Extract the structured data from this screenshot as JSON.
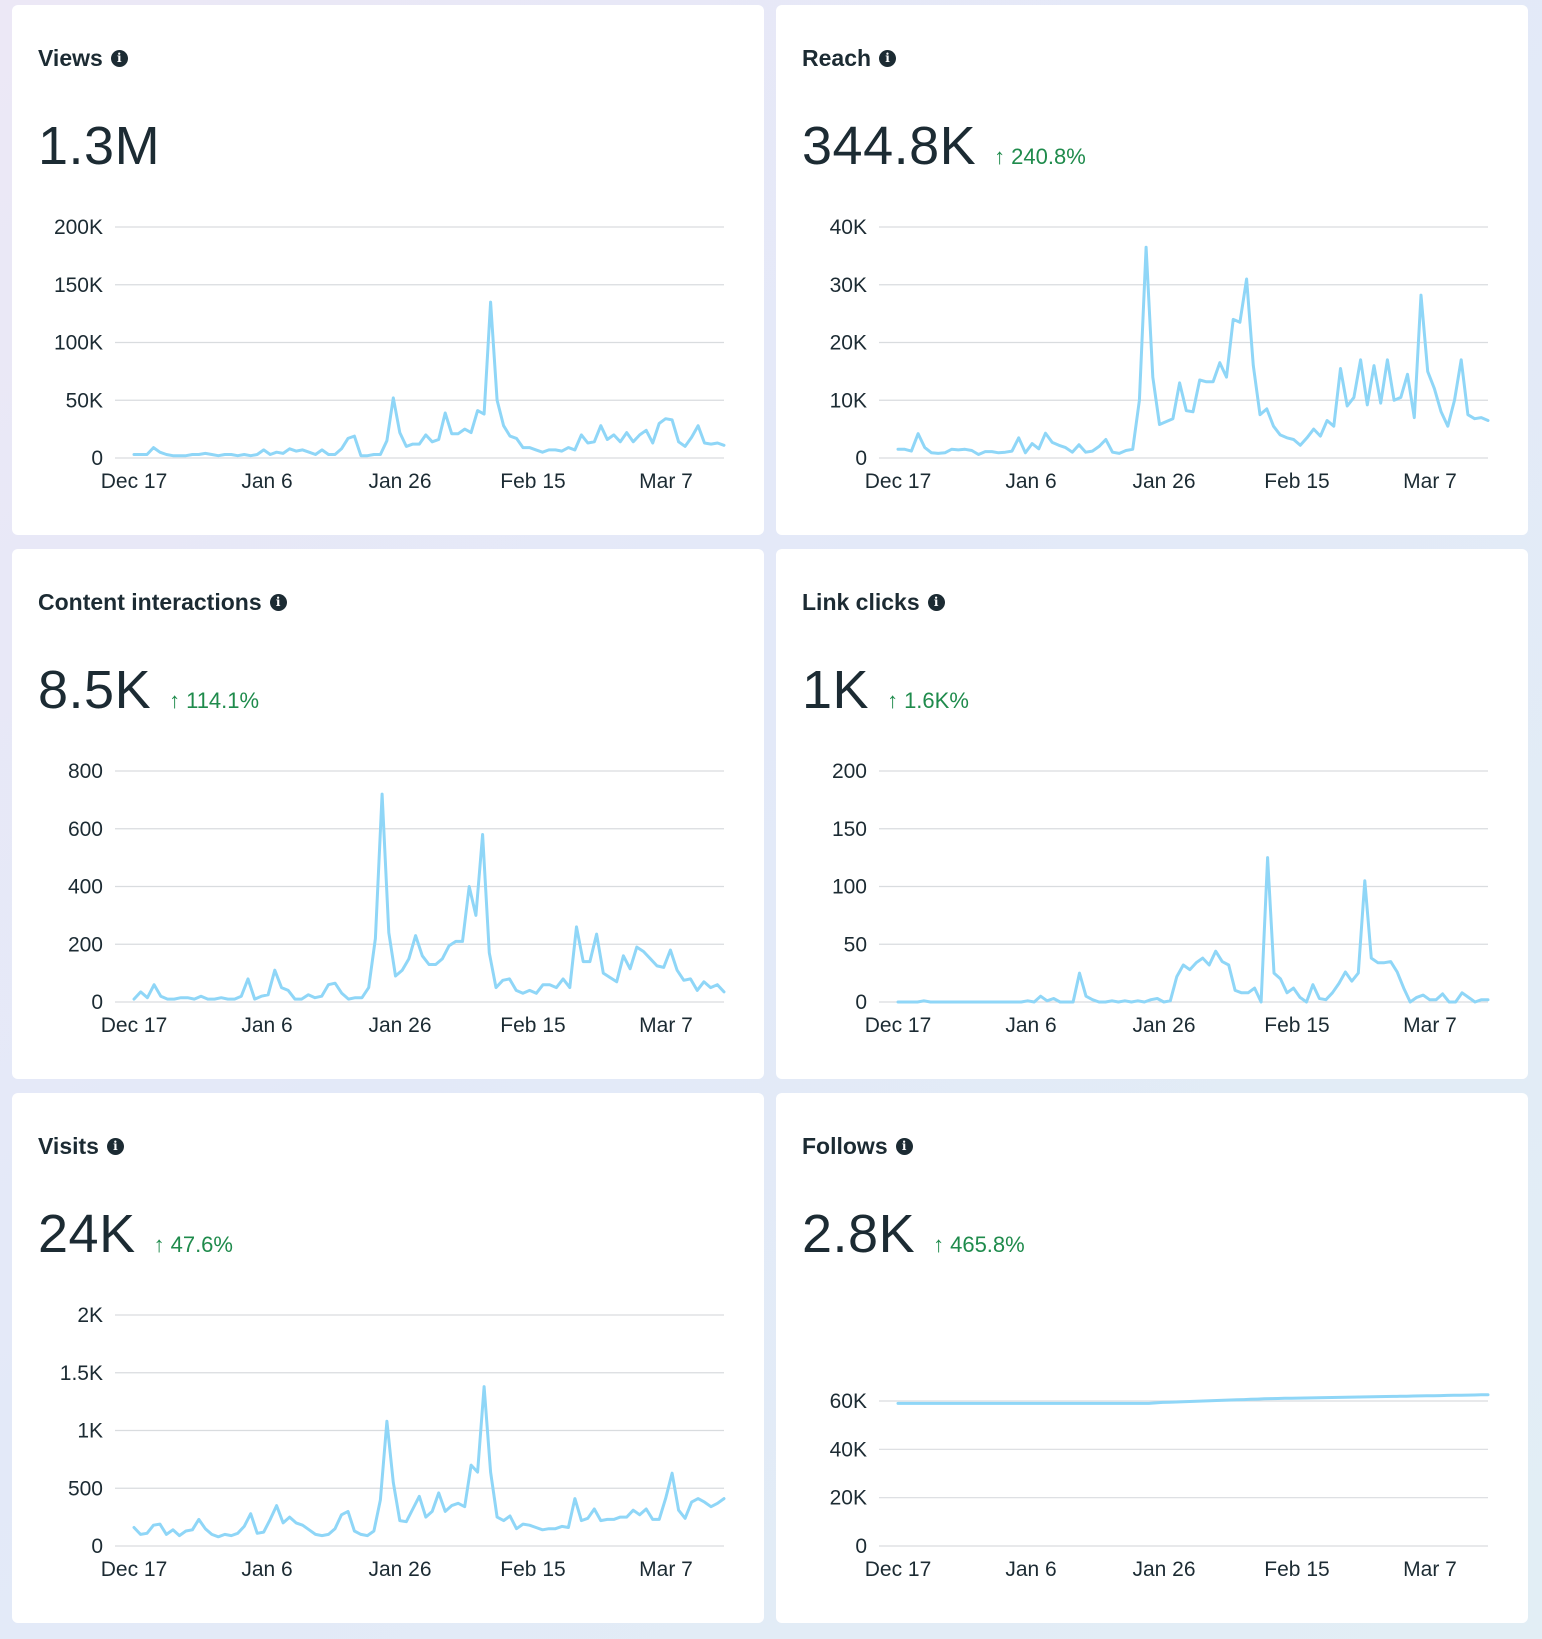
{
  "panels": [
    {
      "title": "Views",
      "value": "1.3M",
      "change": "",
      "icon": "info-icon",
      "change_icon": "arrow-up-icon"
    },
    {
      "title": "Reach",
      "value": "344.8K",
      "change": "240.8%",
      "icon": "info-icon",
      "change_icon": "arrow-up-icon"
    },
    {
      "title": "Content interactions",
      "value": "8.5K",
      "change": "114.1%",
      "icon": "info-icon",
      "change_icon": "arrow-up-icon"
    },
    {
      "title": "Link clicks",
      "value": "1K",
      "change": "1.6K%",
      "icon": "info-icon",
      "change_icon": "arrow-up-icon"
    },
    {
      "title": "Visits",
      "value": "24K",
      "change": "47.6%",
      "icon": "info-icon",
      "change_icon": "arrow-up-icon"
    },
    {
      "title": "Follows",
      "value": "2.8K",
      "change": "465.8%",
      "icon": "info-icon",
      "change_icon": "arrow-up-icon"
    }
  ],
  "colors": {
    "line": "#8fd6f7",
    "grid": "#d9dcdf",
    "positive": "#1f8b4c"
  },
  "chart_data": [
    {
      "type": "line",
      "title": "Views",
      "x_ticks": [
        "Dec 17",
        "Jan 6",
        "Jan 26",
        "Feb 15",
        "Mar 7"
      ],
      "y_ticks": [
        0,
        50000,
        100000,
        150000,
        200000
      ],
      "y_tick_labels": [
        "0",
        "50K",
        "100K",
        "150K",
        "200K"
      ],
      "ylim": [
        0,
        200000
      ],
      "values": [
        3000,
        3000,
        3000,
        9000,
        5000,
        3000,
        2000,
        2000,
        2000,
        3000,
        3000,
        4000,
        3000,
        2000,
        3000,
        3000,
        2000,
        3000,
        2000,
        3000,
        7000,
        3000,
        5000,
        4000,
        8000,
        6000,
        7000,
        5000,
        3000,
        7000,
        3000,
        3000,
        8000,
        17000,
        19000,
        2000,
        2000,
        3000,
        3000,
        15000,
        52000,
        22000,
        10000,
        12000,
        12000,
        20000,
        14000,
        16000,
        39000,
        21000,
        21000,
        25000,
        22000,
        41000,
        38000,
        135000,
        50000,
        28000,
        19000,
        17000,
        9000,
        9000,
        7000,
        5000,
        7000,
        7000,
        6000,
        9000,
        7000,
        20000,
        13000,
        14000,
        28000,
        16000,
        20000,
        14000,
        22000,
        14000,
        20000,
        24000,
        13000,
        30000,
        34000,
        33000,
        14000,
        10000,
        18000,
        28000,
        13000,
        12000,
        13000,
        11000
      ]
    },
    {
      "type": "line",
      "title": "Reach",
      "x_ticks": [
        "Dec 17",
        "Jan 6",
        "Jan 26",
        "Feb 15",
        "Mar 7"
      ],
      "y_ticks": [
        0,
        10000,
        20000,
        30000,
        40000
      ],
      "y_tick_labels": [
        "0",
        "10K",
        "20K",
        "30K",
        "40K"
      ],
      "ylim": [
        0,
        40000
      ],
      "values": [
        1500,
        1500,
        1200,
        4200,
        1800,
        900,
        800,
        900,
        1500,
        1400,
        1500,
        1300,
        600,
        1100,
        1100,
        900,
        1000,
        1200,
        3500,
        900,
        2500,
        1600,
        4300,
        2700,
        2200,
        1800,
        1000,
        2300,
        1000,
        1200,
        2000,
        3200,
        1000,
        800,
        1300,
        1500,
        10000,
        36500,
        14000,
        5800,
        6300,
        6800,
        13000,
        8200,
        8000,
        13500,
        13200,
        13200,
        16500,
        14000,
        24000,
        23500,
        31000,
        16000,
        7500,
        8500,
        5500,
        4000,
        3500,
        3200,
        2200,
        3500,
        5000,
        3800,
        6500,
        5500,
        15500,
        9000,
        10500,
        17000,
        9200,
        16000,
        9500,
        17000,
        10000,
        10500,
        14500,
        7000,
        28200,
        15000,
        12000,
        8000,
        5500,
        10000,
        17000,
        7500,
        6800,
        7000,
        6500
      ]
    },
    {
      "type": "line",
      "title": "Content interactions",
      "x_ticks": [
        "Dec 17",
        "Jan 6",
        "Jan 26",
        "Feb 15",
        "Mar 7"
      ],
      "y_ticks": [
        0,
        200,
        400,
        600,
        800
      ],
      "y_tick_labels": [
        "0",
        "200",
        "400",
        "600",
        "800"
      ],
      "ylim": [
        0,
        800
      ],
      "values": [
        10,
        35,
        15,
        60,
        20,
        10,
        10,
        15,
        15,
        10,
        20,
        10,
        10,
        15,
        10,
        10,
        20,
        80,
        10,
        20,
        25,
        110,
        50,
        40,
        10,
        10,
        25,
        15,
        20,
        60,
        65,
        30,
        10,
        15,
        15,
        50,
        220,
        720,
        240,
        90,
        110,
        150,
        230,
        160,
        130,
        130,
        150,
        195,
        210,
        210,
        400,
        300,
        580,
        170,
        50,
        75,
        80,
        40,
        30,
        40,
        30,
        60,
        60,
        50,
        80,
        50,
        260,
        140,
        140,
        235,
        100,
        85,
        70,
        160,
        115,
        190,
        175,
        150,
        125,
        120,
        180,
        110,
        75,
        80,
        40,
        70,
        50,
        60,
        35
      ]
    },
    {
      "type": "line",
      "title": "Link clicks",
      "x_ticks": [
        "Dec 17",
        "Jan 6",
        "Jan 26",
        "Feb 15",
        "Mar 7"
      ],
      "y_ticks": [
        0,
        50,
        100,
        150,
        200
      ],
      "y_tick_labels": [
        "0",
        "50",
        "100",
        "150",
        "200"
      ],
      "ylim": [
        0,
        200
      ],
      "values": [
        0,
        0,
        0,
        0,
        1,
        0,
        0,
        0,
        0,
        0,
        0,
        0,
        0,
        0,
        0,
        0,
        0,
        0,
        0,
        0,
        1,
        0,
        5,
        1,
        3,
        0,
        0,
        0,
        25,
        5,
        2,
        0,
        0,
        1,
        0,
        1,
        0,
        1,
        0,
        2,
        3,
        0,
        1,
        22,
        32,
        28,
        34,
        38,
        32,
        44,
        35,
        32,
        10,
        8,
        8,
        12,
        0,
        125,
        25,
        20,
        8,
        12,
        4,
        0,
        15,
        3,
        2,
        8,
        16,
        26,
        18,
        25,
        105,
        38,
        34,
        34,
        35,
        26,
        12,
        0,
        4,
        6,
        2,
        2,
        7,
        0,
        0,
        8,
        4,
        0,
        2,
        2
      ]
    },
    {
      "type": "line",
      "title": "Visits",
      "x_ticks": [
        "Dec 17",
        "Jan 6",
        "Jan 26",
        "Feb 15",
        "Mar 7"
      ],
      "y_ticks": [
        0,
        500,
        1000,
        1500,
        2000
      ],
      "y_tick_labels": [
        "0",
        "500",
        "1K",
        "1.5K",
        "2K"
      ],
      "ylim": [
        0,
        2000
      ],
      "values": [
        160,
        100,
        110,
        180,
        190,
        100,
        140,
        90,
        130,
        140,
        230,
        150,
        100,
        80,
        100,
        90,
        110,
        170,
        280,
        110,
        120,
        230,
        350,
        200,
        250,
        200,
        180,
        140,
        100,
        90,
        100,
        150,
        270,
        300,
        130,
        100,
        90,
        130,
        400,
        1080,
        550,
        220,
        210,
        320,
        430,
        250,
        300,
        460,
        300,
        350,
        370,
        340,
        700,
        640,
        1380,
        640,
        250,
        220,
        260,
        150,
        190,
        180,
        160,
        140,
        150,
        150,
        170,
        160,
        410,
        220,
        240,
        320,
        220,
        230,
        230,
        250,
        250,
        310,
        270,
        320,
        230,
        230,
        410,
        630,
        310,
        240,
        380,
        410,
        380,
        340,
        370,
        410
      ]
    },
    {
      "type": "line",
      "title": "Follows",
      "x_ticks": [
        "Dec 17",
        "Jan 6",
        "Jan 26",
        "Feb 15",
        "Mar 7"
      ],
      "y_ticks": [
        0,
        20000,
        40000,
        60000
      ],
      "y_tick_labels": [
        "0",
        "20K",
        "40K",
        "60K"
      ],
      "ylim": [
        0,
        66000
      ],
      "values": [
        59000,
        59000,
        59000,
        59000,
        59000,
        59000,
        59000,
        59000,
        59000,
        59000,
        59000,
        59000,
        59000,
        59000,
        59000,
        59000,
        59000,
        59000,
        59000,
        59000,
        59000,
        59000,
        59000,
        59000,
        59000,
        59000,
        59000,
        59000,
        59000,
        59000,
        59000,
        59000,
        59000,
        59000,
        59000,
        59000,
        59000,
        59000,
        59200,
        59400,
        59500,
        59600,
        59700,
        59800,
        59900,
        60000,
        60100,
        60200,
        60300,
        60400,
        60500,
        60600,
        60700,
        60800,
        60900,
        61000,
        61050,
        61100,
        61150,
        61200,
        61250,
        61300,
        61350,
        61400,
        61450,
        61500,
        61550,
        61600,
        61650,
        61700,
        61750,
        61800,
        61850,
        61900,
        61950,
        62000,
        62050,
        62100,
        62150,
        62200,
        62250,
        62300,
        62350,
        62400,
        62450,
        62500,
        62550,
        62600
      ]
    }
  ]
}
